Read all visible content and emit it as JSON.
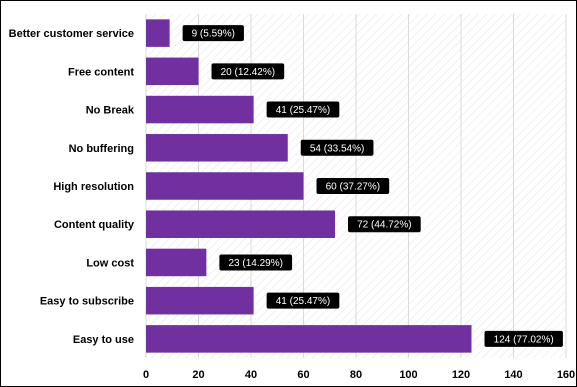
{
  "chart_data": {
    "type": "bar",
    "orientation": "horizontal",
    "categories": [
      "Better customer service",
      "Free content",
      "No Break",
      "No buffering",
      "High resolution",
      "Content quality",
      "Low cost",
      "Easy to subscribe",
      "Easy to use"
    ],
    "values": [
      9,
      20,
      41,
      54,
      60,
      72,
      23,
      41,
      124
    ],
    "data_labels": [
      "9 (5.59%)",
      "20 (12.42%)",
      "41 (25.47%)",
      "54 (33.54%)",
      "60 (37.27%)",
      "72 (44.72%)",
      "23 (14.29%)",
      "41 (25.47%)",
      "124 (77.02%)"
    ],
    "xlim": [
      0,
      160
    ],
    "xticks": [
      0,
      20,
      40,
      60,
      80,
      100,
      120,
      140,
      160
    ],
    "title": "",
    "xlabel": "",
    "ylabel": "",
    "grid": true,
    "legend": "none",
    "colors": {
      "bar": "#7030a0",
      "label_bg": "#000000",
      "label_text": "#ffffff",
      "grid": "#d9d9d9",
      "plot_hatch": "#e4e4e4"
    }
  }
}
